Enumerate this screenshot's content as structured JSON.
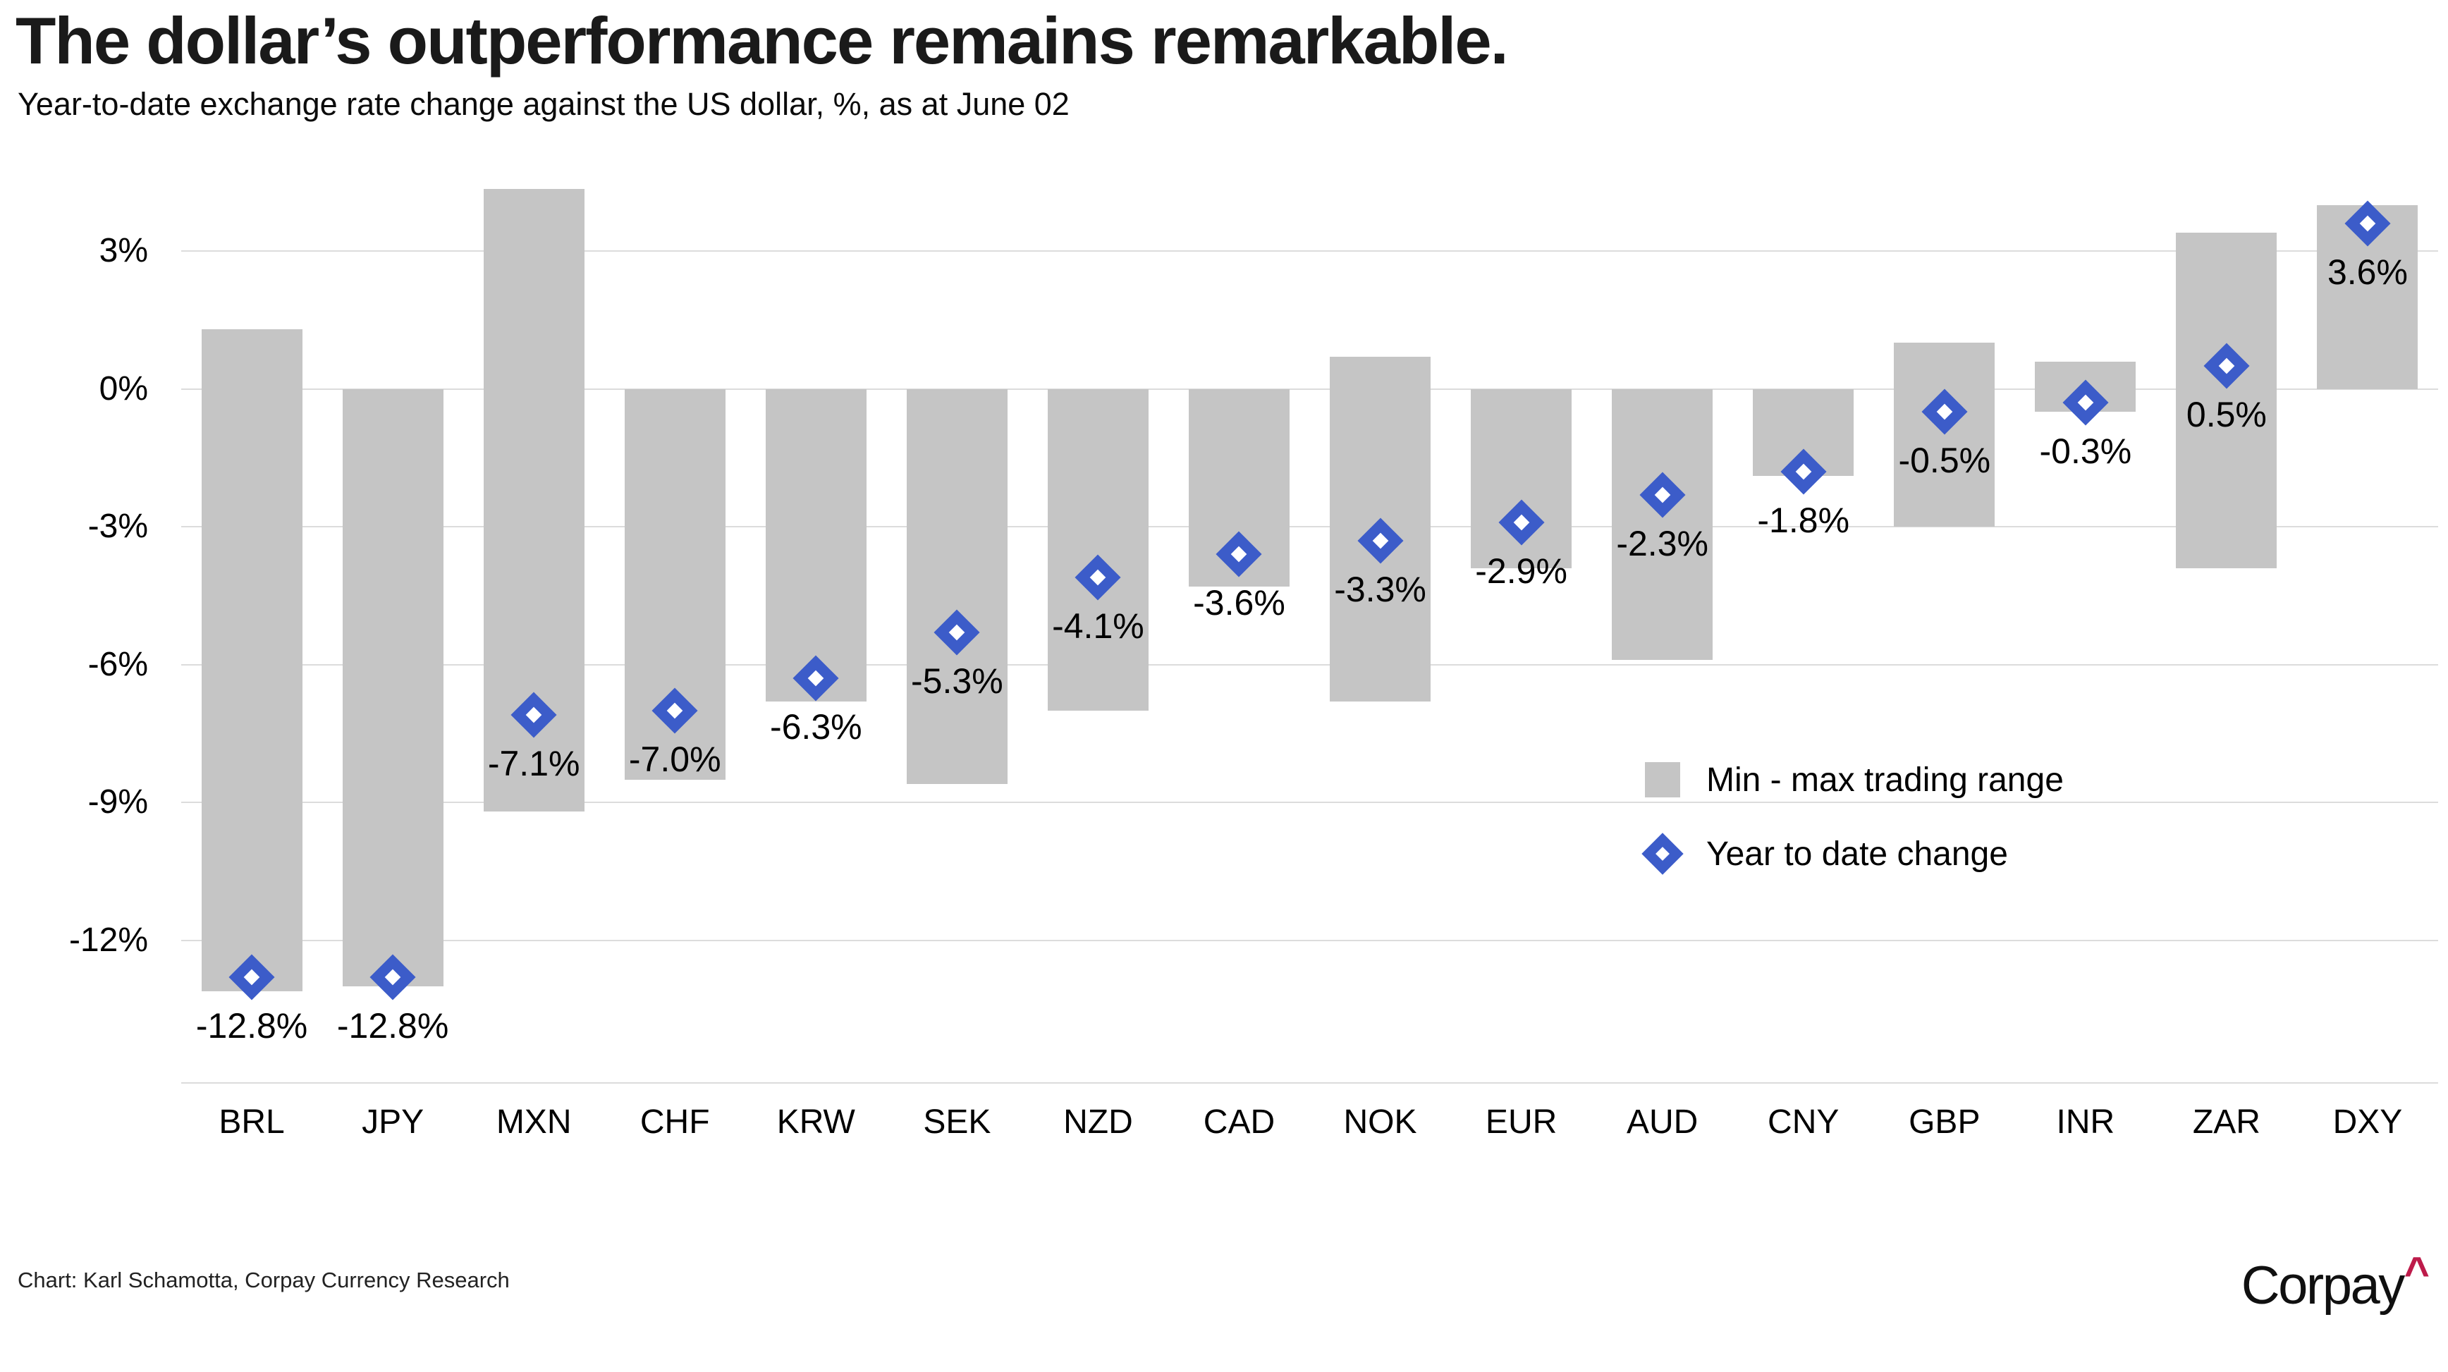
{
  "title": "The dollar’s outperformance remains remarkable.",
  "subtitle": "Year-to-date exchange rate change against the US dollar, %, as at June 02",
  "legend": {
    "range_label": "Min - max trading range",
    "ytd_label": "Year to date change"
  },
  "footer": {
    "credit": "Chart: Karl Schamotta, Corpay Currency Research",
    "logo_text": "Corpay",
    "logo_caret": "^"
  },
  "colors": {
    "bar_gray": "#C5C5C5",
    "diamond_blue": "#3C5CC9",
    "diamond_inner_white": "#FFFFFF",
    "gridline": "#DCDCDC",
    "caret_red": "#BD1B4A",
    "text": "#000000"
  },
  "chart_data": {
    "type": "bar",
    "subtype": "floating-range-bars-with-diamond-markers",
    "title": "The dollar’s outperformance remains remarkable.",
    "subtitle": "Year-to-date exchange rate change against the US dollar, %, as at June 02",
    "categories": [
      "BRL",
      "JPY",
      "MXN",
      "CHF",
      "KRW",
      "SEK",
      "NZD",
      "CAD",
      "NOK",
      "EUR",
      "AUD",
      "CNY",
      "GBP",
      "INR",
      "ZAR",
      "DXY"
    ],
    "series": [
      {
        "name": "Min - max trading range",
        "type": "range",
        "max": [
          1.3,
          0.0,
          4.35,
          0.0,
          0.0,
          0.0,
          0.0,
          0.0,
          0.7,
          0.0,
          0.0,
          0.0,
          1.0,
          0.6,
          3.4,
          4.0
        ],
        "min": [
          -13.1,
          -13.0,
          -9.2,
          -8.5,
          -6.8,
          -8.6,
          -7.0,
          -4.3,
          -6.8,
          -3.9,
          -5.9,
          -1.9,
          -3.0,
          -0.5,
          -3.9,
          0.0
        ]
      },
      {
        "name": "Year to date change",
        "type": "scatter",
        "values": [
          -12.8,
          -12.8,
          -7.1,
          -7.0,
          -6.3,
          -5.3,
          -4.1,
          -3.6,
          -3.3,
          -2.9,
          -2.3,
          -1.8,
          -0.5,
          -0.3,
          0.5,
          3.6
        ],
        "labels": [
          "-12.8%",
          "-12.8%",
          "-7.1%",
          "-7.0%",
          "-6.3%",
          "-5.3%",
          "-4.1%",
          "-3.6%",
          "-3.3%",
          "-2.9%",
          "-2.3%",
          "-1.8%",
          "-0.5%",
          "-0.3%",
          "0.5%",
          "3.6%"
        ]
      }
    ],
    "yticks": {
      "values": [
        3,
        0,
        -3,
        -6,
        -9,
        -12
      ],
      "labels": [
        "3%",
        "0%",
        "-3%",
        "-6%",
        "-9%",
        "-12%"
      ]
    },
    "ylim": [
      -15.1,
      4.55
    ],
    "xlabel": "",
    "ylabel": "",
    "grid": true,
    "legend_position": "center-right"
  }
}
